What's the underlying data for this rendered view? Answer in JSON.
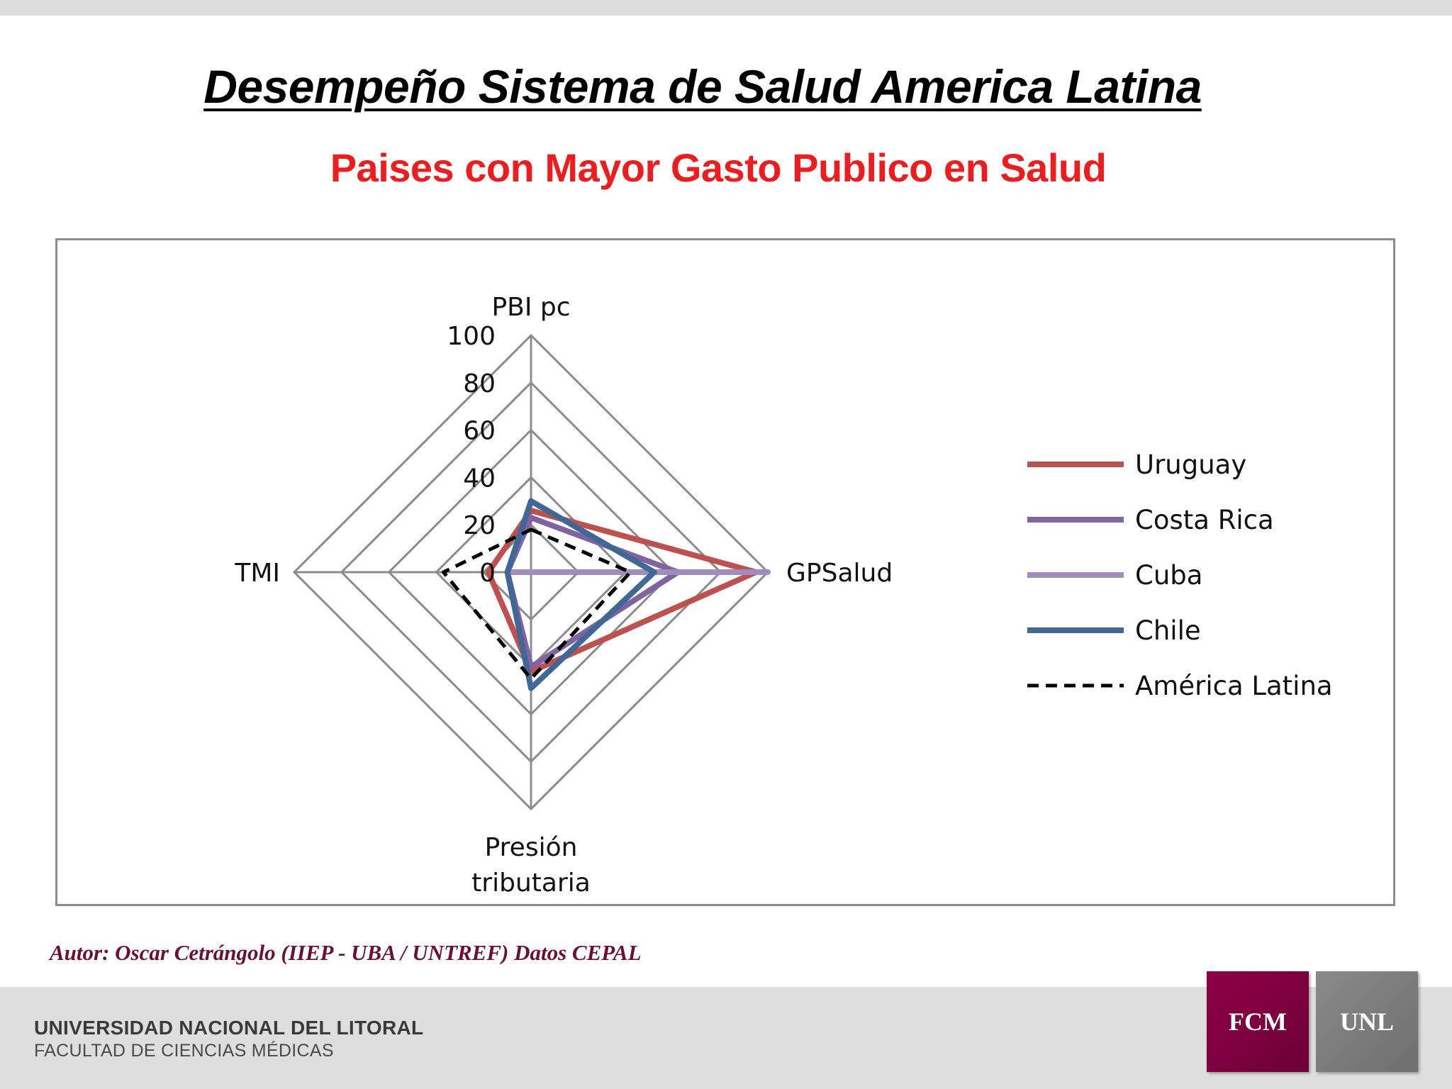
{
  "slide": {
    "title": "Desempeño Sistema de Salud America Latina",
    "subtitle": "Paises con Mayor Gasto Publico en Salud",
    "author_note": "Autor: Oscar Cetrángolo (IIEP - UBA / UNTREF) Datos  CEPAL",
    "footer": {
      "university": "UNIVERSIDAD NACIONAL DEL LITORAL",
      "faculty": "FACULTAD DE CIENCIAS MÉDICAS"
    },
    "logos": {
      "fcm": "FCM",
      "unl": "UNL"
    }
  },
  "chart_data": {
    "type": "radar",
    "axes": [
      "PBI pc",
      "GPSalud",
      "Presión tributaria",
      "TMI"
    ],
    "axis_label_lines": [
      [
        "PBI pc"
      ],
      [
        "GPSalud"
      ],
      [
        "Presión",
        "tributaria"
      ],
      [
        "TMI"
      ]
    ],
    "rlim": [
      0,
      100
    ],
    "ticks": [
      0,
      20,
      40,
      60,
      80,
      100
    ],
    "grid": true,
    "legend_position": "right",
    "series": [
      {
        "name": "Uruguay",
        "values": [
          26,
          95,
          42,
          18
        ],
        "color": "#c0504d",
        "dash": "solid"
      },
      {
        "name": "Costa Rica",
        "values": [
          23,
          62,
          40,
          10
        ],
        "color": "#8064a2",
        "dash": "solid"
      },
      {
        "name": "Cuba",
        "values": [
          0,
          100,
          0,
          10
        ],
        "color": "#a08dbf",
        "dash": "solid"
      },
      {
        "name": "Chile",
        "values": [
          30,
          52,
          49,
          10
        ],
        "color": "#3f6797",
        "dash": "solid"
      },
      {
        "name": "América Latina",
        "values": [
          18,
          42,
          45,
          37
        ],
        "color": "#000000",
        "dash": "dashed"
      }
    ]
  }
}
